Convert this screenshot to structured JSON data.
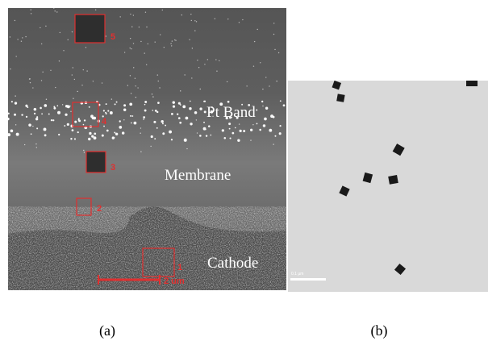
{
  "panel_a": {
    "caption": "(a)",
    "labels": {
      "pt_band": "Pt Band",
      "membrane": "Membrane",
      "cathode": "Cathode"
    },
    "regions": [
      "1",
      "2",
      "3",
      "4",
      "5"
    ],
    "scale_bar": "2 um"
  },
  "panel_b": {
    "caption": "(b)",
    "scale_bar": "0.1 µm"
  }
}
